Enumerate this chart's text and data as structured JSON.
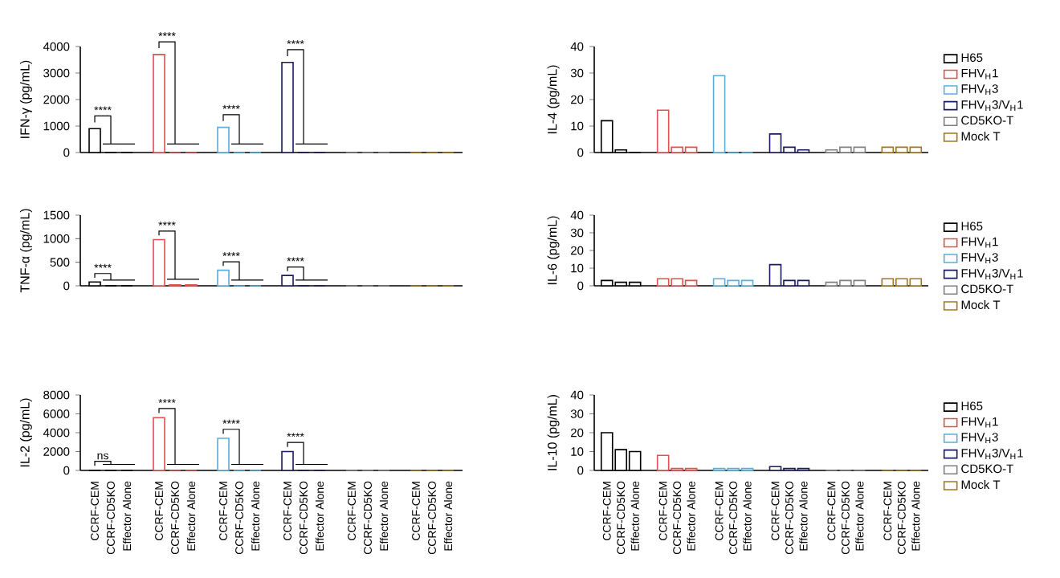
{
  "chart_data": [
    {
      "type": "bar",
      "ylabel": "IFN-γ (pg/mL)",
      "categories": [
        null,
        null,
        null,
        null,
        null,
        null,
        null,
        null,
        null,
        null,
        null,
        null,
        null,
        null,
        null,
        null,
        null,
        null
      ],
      "tick_labels": "y",
      "ylim": [
        0,
        4000
      ],
      "yticks": [
        0,
        1000,
        2000,
        3000,
        4000
      ],
      "annotations": [
        "****",
        "****",
        "****",
        "****"
      ],
      "series": [
        {
          "color": "#000000",
          "values": [
            900,
            0,
            0,
            null,
            null,
            null,
            null,
            null,
            null,
            null,
            null,
            null,
            null,
            null,
            null,
            null,
            null,
            null
          ]
        },
        {
          "color": "#e05050",
          "values": [
            null,
            null,
            null,
            3700,
            0,
            0,
            null,
            null,
            null,
            null,
            null,
            null,
            null,
            null,
            null,
            null,
            null,
            null
          ]
        },
        {
          "color": "#5aaedc",
          "values": [
            null,
            null,
            null,
            null,
            null,
            null,
            950,
            0,
            0,
            null,
            null,
            null,
            null,
            null,
            null,
            null,
            null,
            null
          ]
        },
        {
          "color": "#1a1a5e",
          "values": [
            null,
            null,
            null,
            null,
            null,
            null,
            null,
            null,
            null,
            3400,
            0,
            0,
            null,
            null,
            null,
            null,
            null,
            null
          ]
        },
        {
          "color": "#808080",
          "values": [
            null,
            null,
            null,
            null,
            null,
            null,
            null,
            null,
            null,
            null,
            null,
            null,
            0,
            0,
            0,
            null,
            null,
            null
          ]
        },
        {
          "color": "#a07820",
          "values": [
            null,
            null,
            null,
            null,
            null,
            null,
            null,
            null,
            null,
            null,
            null,
            null,
            null,
            null,
            null,
            0,
            0,
            0
          ]
        }
      ]
    },
    {
      "type": "bar",
      "ylabel": "IL-4 (pg/mL)",
      "categories": [
        null,
        null,
        null,
        null,
        null,
        null,
        null,
        null,
        null,
        null,
        null,
        null,
        null,
        null,
        null,
        null,
        null,
        null
      ],
      "tick_labels": "y",
      "ylim": [
        0,
        40
      ],
      "yticks": [
        0,
        10,
        20,
        30,
        40
      ],
      "legend": "right",
      "series": [
        {
          "name": "H65",
          "color": "#000000",
          "values": [
            12,
            1,
            0,
            null,
            null,
            null,
            null,
            null,
            null,
            null,
            null,
            null,
            null,
            null,
            null,
            null,
            null,
            null
          ]
        },
        {
          "name": "FHV$_{H}$1",
          "color": "#e05050",
          "values": [
            null,
            null,
            null,
            16,
            2,
            2,
            null,
            null,
            null,
            null,
            null,
            null,
            null,
            null,
            null,
            null,
            null,
            null
          ]
        },
        {
          "name": "FHV$_{H}$3",
          "color": "#5aaedc",
          "values": [
            null,
            null,
            null,
            null,
            null,
            null,
            29,
            0,
            0,
            null,
            null,
            null,
            null,
            null,
            null,
            null,
            null,
            null
          ]
        },
        {
          "name": "FHV$_{H}$3/V$_{H}$1",
          "color": "#1a1a5e",
          "values": [
            null,
            null,
            null,
            null,
            null,
            null,
            null,
            null,
            null,
            7,
            2,
            1,
            null,
            null,
            null,
            null,
            null,
            null
          ]
        },
        {
          "name": "CD5KO-T",
          "color": "#808080",
          "values": [
            null,
            null,
            null,
            null,
            null,
            null,
            null,
            null,
            null,
            null,
            null,
            null,
            1,
            2,
            2,
            null,
            null,
            null
          ]
        },
        {
          "name": "Mock T",
          "color": "#a07820",
          "values": [
            null,
            null,
            null,
            null,
            null,
            null,
            null,
            null,
            null,
            null,
            null,
            null,
            null,
            null,
            null,
            2,
            2,
            2
          ]
        }
      ]
    },
    {
      "type": "bar",
      "ylabel": "TNF-α (pg/mL)",
      "categories": [
        null,
        null,
        null,
        null,
        null,
        null,
        null,
        null,
        null,
        null,
        null,
        null,
        null,
        null,
        null,
        null,
        null,
        null
      ],
      "tick_labels": "y",
      "ylim": [
        0,
        1500
      ],
      "yticks": [
        0,
        500,
        1000,
        1500
      ],
      "annotations": [
        "****",
        "****",
        "****",
        "****"
      ],
      "series": [
        {
          "color": "#000000",
          "values": [
            80,
            0,
            0,
            null,
            null,
            null,
            null,
            null,
            null,
            null,
            null,
            null,
            null,
            null,
            null,
            null,
            null,
            null
          ]
        },
        {
          "color": "#e05050",
          "values": [
            null,
            null,
            null,
            980,
            20,
            20,
            null,
            null,
            null,
            null,
            null,
            null,
            null,
            null,
            null,
            null,
            null,
            null
          ]
        },
        {
          "color": "#5aaedc",
          "values": [
            null,
            null,
            null,
            null,
            null,
            null,
            330,
            0,
            0,
            null,
            null,
            null,
            null,
            null,
            null,
            null,
            null,
            null
          ]
        },
        {
          "color": "#1a1a5e",
          "values": [
            null,
            null,
            null,
            null,
            null,
            null,
            null,
            null,
            null,
            220,
            0,
            0,
            null,
            null,
            null,
            null,
            null,
            null
          ]
        },
        {
          "color": "#808080",
          "values": [
            null,
            null,
            null,
            null,
            null,
            null,
            null,
            null,
            null,
            null,
            null,
            null,
            0,
            0,
            0,
            null,
            null,
            null
          ]
        },
        {
          "color": "#a07820",
          "values": [
            null,
            null,
            null,
            null,
            null,
            null,
            null,
            null,
            null,
            null,
            null,
            null,
            null,
            null,
            null,
            0,
            0,
            0
          ]
        }
      ]
    },
    {
      "type": "bar",
      "ylabel": "IL-6 (pg/mL)",
      "categories": [
        null,
        null,
        null,
        null,
        null,
        null,
        null,
        null,
        null,
        null,
        null,
        null,
        null,
        null,
        null,
        null,
        null,
        null
      ],
      "tick_labels": "y",
      "ylim": [
        0,
        40
      ],
      "yticks": [
        0,
        10,
        20,
        30,
        40
      ],
      "legend": "right",
      "series": [
        {
          "name": "H65",
          "color": "#000000",
          "values": [
            3,
            2,
            2,
            null,
            null,
            null,
            null,
            null,
            null,
            null,
            null,
            null,
            null,
            null,
            null,
            null,
            null,
            null
          ]
        },
        {
          "name": "FHV$_{H}$1",
          "color": "#e05050",
          "values": [
            null,
            null,
            null,
            4,
            4,
            3,
            null,
            null,
            null,
            null,
            null,
            null,
            null,
            null,
            null,
            null,
            null,
            null
          ]
        },
        {
          "name": "FHV$_{H}$3",
          "color": "#5aaedc",
          "values": [
            null,
            null,
            null,
            null,
            null,
            null,
            4,
            3,
            3,
            null,
            null,
            null,
            null,
            null,
            null,
            null,
            null,
            null
          ]
        },
        {
          "name": "FHV$_{H}$3/V$_{H}$1",
          "color": "#1a1a5e",
          "values": [
            null,
            null,
            null,
            null,
            null,
            null,
            null,
            null,
            null,
            12,
            3,
            3,
            null,
            null,
            null,
            null,
            null,
            null
          ]
        },
        {
          "name": "CD5KO-T",
          "color": "#808080",
          "values": [
            null,
            null,
            null,
            null,
            null,
            null,
            null,
            null,
            null,
            null,
            null,
            null,
            2,
            3,
            3,
            null,
            null,
            null
          ]
        },
        {
          "name": "Mock T",
          "color": "#a07820",
          "values": [
            null,
            null,
            null,
            null,
            null,
            null,
            null,
            null,
            null,
            null,
            null,
            null,
            null,
            null,
            null,
            4,
            4,
            4
          ]
        }
      ]
    },
    {
      "type": "bar",
      "ylabel": "IL-2 (pg/mL)",
      "categories": [
        "CCRF-CEM",
        "CCRF-CD5KO",
        "Effector Alone",
        "CCRF-CEM",
        "CCRF-CD5KO",
        "Effector Alone",
        "CCRF-CEM",
        "CCRF-CD5KO",
        "Effector Alone",
        "CCRF-CEM",
        "CCRF-CD5KO",
        "Effector Alone",
        "CCRF-CEM",
        "CCRF-CD5KO",
        "Effector Alone",
        "CCRF-CEM",
        "CCRF-CD5KO",
        "Effector Alone"
      ],
      "ylim": [
        0,
        8000
      ],
      "yticks": [
        0,
        2000,
        4000,
        6000,
        8000
      ],
      "annotations": [
        "ns",
        "****",
        "****",
        "****"
      ],
      "series": [
        {
          "color": "#000000",
          "values": [
            0,
            0,
            0,
            null,
            null,
            null,
            null,
            null,
            null,
            null,
            null,
            null,
            null,
            null,
            null,
            null,
            null,
            null
          ]
        },
        {
          "color": "#e05050",
          "values": [
            null,
            null,
            null,
            5600,
            0,
            0,
            null,
            null,
            null,
            null,
            null,
            null,
            null,
            null,
            null,
            null,
            null,
            null
          ]
        },
        {
          "color": "#5aaedc",
          "values": [
            null,
            null,
            null,
            null,
            null,
            null,
            3400,
            0,
            0,
            null,
            null,
            null,
            null,
            null,
            null,
            null,
            null,
            null
          ]
        },
        {
          "color": "#1a1a5e",
          "values": [
            null,
            null,
            null,
            null,
            null,
            null,
            null,
            null,
            null,
            2000,
            0,
            0,
            null,
            null,
            null,
            null,
            null,
            null
          ]
        },
        {
          "color": "#808080",
          "values": [
            null,
            null,
            null,
            null,
            null,
            null,
            null,
            null,
            null,
            null,
            null,
            null,
            0,
            0,
            0,
            null,
            null,
            null
          ]
        },
        {
          "color": "#a07820",
          "values": [
            null,
            null,
            null,
            null,
            null,
            null,
            null,
            null,
            null,
            null,
            null,
            null,
            null,
            null,
            null,
            0,
            0,
            0
          ]
        }
      ]
    },
    {
      "type": "bar",
      "ylabel": "IL-10 (pg/mL)",
      "categories": [
        "CCRF-CEM",
        "CCRF-CD5KO",
        "Effector Alone",
        "CCRF-CEM",
        "CCRF-CD5KO",
        "Effector Alone",
        "CCRF-CEM",
        "CCRF-CD5KO",
        "Effector Alone",
        "CCRF-CEM",
        "CCRF-CD5KO",
        "Effector Alone",
        "CCRF-CEM",
        "CCRF-CD5KO",
        "Effector Alone",
        "CCRF-CEM",
        "CCRF-CD5KO",
        "Effector Alone"
      ],
      "ylim": [
        0,
        40
      ],
      "yticks": [
        0,
        10,
        20,
        30,
        40
      ],
      "legend": "right",
      "series": [
        {
          "name": "H65",
          "color": "#000000",
          "values": [
            20,
            11,
            10,
            null,
            null,
            null,
            null,
            null,
            null,
            null,
            null,
            null,
            null,
            null,
            null,
            null,
            null,
            null
          ]
        },
        {
          "name": "FHV$_{H}$1",
          "color": "#e05050",
          "values": [
            null,
            null,
            null,
            8,
            1,
            1,
            null,
            null,
            null,
            null,
            null,
            null,
            null,
            null,
            null,
            null,
            null,
            null
          ]
        },
        {
          "name": "FHV$_{H}$3",
          "color": "#5aaedc",
          "values": [
            null,
            null,
            null,
            null,
            null,
            null,
            1,
            1,
            1,
            null,
            null,
            null,
            null,
            null,
            null,
            null,
            null,
            null
          ]
        },
        {
          "name": "FHV$_{H}$3/V$_{H}$1",
          "color": "#1a1a5e",
          "values": [
            null,
            null,
            null,
            null,
            null,
            null,
            null,
            null,
            null,
            2,
            1,
            1,
            null,
            null,
            null,
            null,
            null,
            null
          ]
        },
        {
          "name": "CD5KO-T",
          "color": "#808080",
          "values": [
            null,
            null,
            null,
            null,
            null,
            null,
            null,
            null,
            null,
            null,
            null,
            null,
            0,
            0,
            0,
            null,
            null,
            null
          ]
        },
        {
          "name": "Mock T",
          "color": "#a07820",
          "values": [
            null,
            null,
            null,
            null,
            null,
            null,
            null,
            null,
            null,
            null,
            null,
            null,
            null,
            null,
            null,
            0,
            0,
            0
          ]
        }
      ]
    }
  ]
}
